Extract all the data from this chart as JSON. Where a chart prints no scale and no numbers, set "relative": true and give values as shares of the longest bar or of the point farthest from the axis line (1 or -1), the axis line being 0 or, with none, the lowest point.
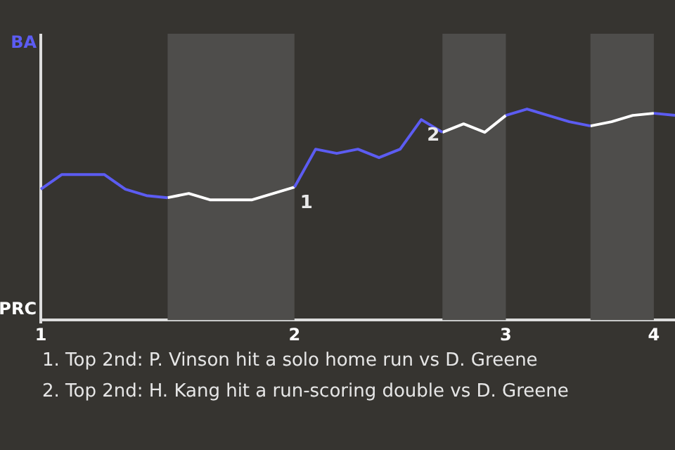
{
  "chart_data": {
    "type": "line",
    "relative": true,
    "annotations": [
      "BA",
      "PRC",
      {
        "text": "1",
        "x": "2",
        "y": 0.63
      },
      {
        "text": "2",
        "y": 0.95
      },
      "1. Top 2nd: P. Vinson hit a solo home run vs D. Greene",
      "2. Top 2nd: H. Kang hit a run-scoring double vs D. Greene"
    ],
    "categories": [
      "1",
      null,
      null,
      null,
      null,
      null,
      null,
      null,
      null,
      null,
      null,
      null,
      "2",
      null,
      null,
      null,
      null,
      null,
      null,
      null,
      null,
      null,
      "3",
      null,
      null,
      null,
      null,
      null,
      null,
      "4",
      null
    ],
    "series": [
      {
        "color": "#5c5cf2",
        "values": [
          0.62,
          0.69,
          0.69,
          0.69,
          0.62,
          0.59,
          0.58,
          null,
          null,
          null,
          null,
          null,
          0.63,
          0.81,
          0.79,
          0.81,
          0.77,
          0.81,
          0.95,
          0.89,
          null,
          null,
          0.97,
          1,
          0.97,
          0.94,
          0.92,
          null,
          null,
          0.98,
          0.97
        ]
      },
      {
        "color": "#ffffff",
        "values": [
          null,
          null,
          null,
          null,
          null,
          null,
          0.58,
          0.6,
          0.57,
          0.57,
          0.57,
          0.6,
          0.63,
          null,
          null,
          null,
          null,
          null,
          null,
          0.89,
          0.93,
          0.89,
          0.97,
          null,
          null,
          null,
          0.92,
          0.94,
          0.97,
          0.98,
          null
        ]
      }
    ],
    "line_style": "solid",
    "marker": "none",
    "legend": false
  }
}
